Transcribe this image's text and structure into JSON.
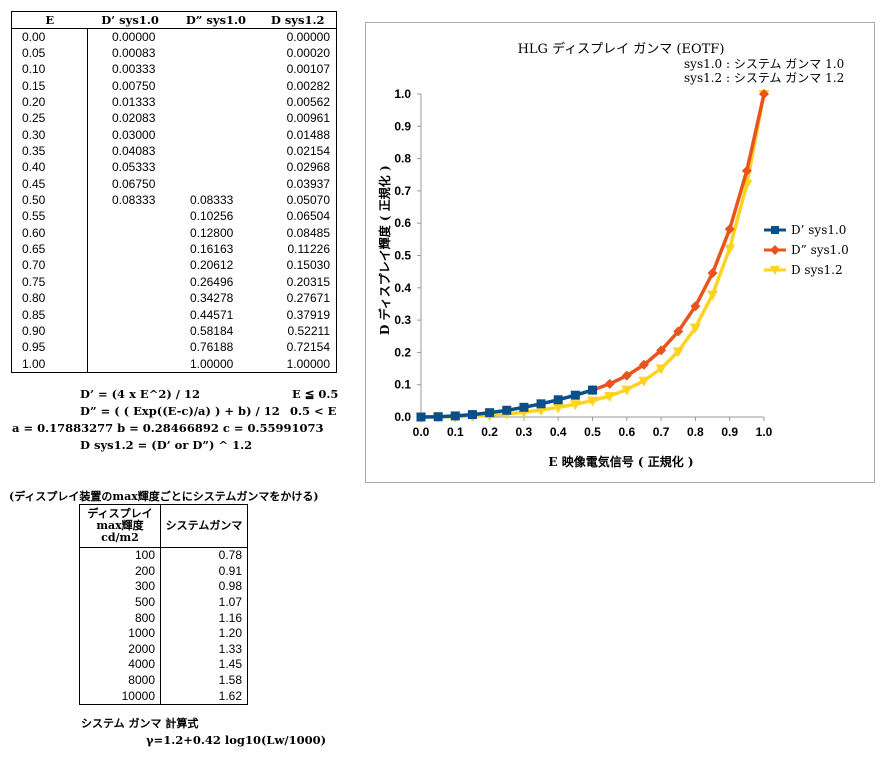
{
  "table1": {
    "headers": [
      "E",
      "D’ sys1.0",
      "D” sys1.0",
      "D sys1.2"
    ],
    "rows": [
      [
        "0.00",
        "0.00000",
        "",
        "0.00000"
      ],
      [
        "0.05",
        "0.00083",
        "",
        "0.00020"
      ],
      [
        "0.10",
        "0.00333",
        "",
        "0.00107"
      ],
      [
        "0.15",
        "0.00750",
        "",
        "0.00282"
      ],
      [
        "0.20",
        "0.01333",
        "",
        "0.00562"
      ],
      [
        "0.25",
        "0.02083",
        "",
        "0.00961"
      ],
      [
        "0.30",
        "0.03000",
        "",
        "0.01488"
      ],
      [
        "0.35",
        "0.04083",
        "",
        "0.02154"
      ],
      [
        "0.40",
        "0.05333",
        "",
        "0.02968"
      ],
      [
        "0.45",
        "0.06750",
        "",
        "0.03937"
      ],
      [
        "0.50",
        "0.08333",
        "0.08333",
        "0.05070"
      ],
      [
        "0.55",
        "",
        "0.10256",
        "0.06504"
      ],
      [
        "0.60",
        "",
        "0.12800",
        "0.08485"
      ],
      [
        "0.65",
        "",
        "0.16163",
        "0.11226"
      ],
      [
        "0.70",
        "",
        "0.20612",
        "0.15030"
      ],
      [
        "0.75",
        "",
        "0.26496",
        "0.20315"
      ],
      [
        "0.80",
        "",
        "0.34278",
        "0.27671"
      ],
      [
        "0.85",
        "",
        "0.44571",
        "0.37919"
      ],
      [
        "0.90",
        "",
        "0.58184",
        "0.52211"
      ],
      [
        "0.95",
        "",
        "0.76188",
        "0.72154"
      ],
      [
        "1.00",
        "",
        "1.00000",
        "1.00000"
      ]
    ]
  },
  "formulas": {
    "f1": "D’ = (4 x E^2) / 12",
    "f1_cond": "E ≦ 0.5",
    "f2": "D” = ( ( Exp((E-c)/a) ) + b) / 12",
    "f2_cond": "0.5 < E",
    "consts": "a = 0.17883277   b = 0.28466892   c = 0.55991073",
    "f3": "D sys1.2 = (D’ or D”) ^ 1.2"
  },
  "section2": {
    "title": "(ディスプレイ装置のmax輝度ごとにシステムガンマをかける)",
    "header_col1": [
      "ディスプレイ",
      "max輝度",
      "cd/m2"
    ],
    "header_col2": "システムガンマ",
    "rows": [
      [
        "100",
        "0.78"
      ],
      [
        "200",
        "0.91"
      ],
      [
        "300",
        "0.98"
      ],
      [
        "500",
        "1.07"
      ],
      [
        "800",
        "1.16"
      ],
      [
        "1000",
        "1.20"
      ],
      [
        "2000",
        "1.33"
      ],
      [
        "4000",
        "1.45"
      ],
      [
        "8000",
        "1.58"
      ],
      [
        "10000",
        "1.62"
      ]
    ],
    "footer_label": "システム ガンマ  計算式",
    "footer_formula": "γ=1.2+0.42 log10(Lw/1000)"
  },
  "chart": {
    "title": "HLG  ディスプレイ ガンマ  (EOTF)",
    "sub1": "sys1.0 : システム ガンマ  1.0",
    "sub2": "sys1.2 : システム ガンマ  1.2",
    "xlabel": "E  映像電気信号  ( 正規化 )",
    "ylabel": "D  ディスプレイ輝度  ( 正規化 )",
    "legend": [
      "D’ sys1.0",
      "D” sys1.0",
      "D sys1.2"
    ],
    "colors": [
      "#0b4f8a",
      "#e8531e",
      "#ffd320"
    ]
  },
  "chart_data": {
    "type": "line",
    "title": "HLG  ディスプレイ ガンマ  (EOTF)",
    "xlabel": "E  映像電気信号  ( 正規化 )",
    "ylabel": "D  ディスプレイ輝度  ( 正規化 )",
    "xlim": [
      0,
      1
    ],
    "ylim": [
      0,
      1
    ],
    "xticks": [
      "0.0",
      "0.1",
      "0.2",
      "0.3",
      "0.4",
      "0.5",
      "0.6",
      "0.7",
      "0.8",
      "0.9",
      "1.0"
    ],
    "yticks": [
      "0.0",
      "0.1",
      "0.2",
      "0.3",
      "0.4",
      "0.5",
      "0.6",
      "0.7",
      "0.8",
      "0.9",
      "1.0"
    ],
    "grid": false,
    "legend_position": "right",
    "series": [
      {
        "name": "D’ sys1.0",
        "marker": "square",
        "x": [
          0,
          0.05,
          0.1,
          0.15,
          0.2,
          0.25,
          0.3,
          0.35,
          0.4,
          0.45,
          0.5
        ],
        "y": [
          0,
          0.00083,
          0.00333,
          0.0075,
          0.01333,
          0.02083,
          0.03,
          0.04083,
          0.05333,
          0.0675,
          0.08333
        ]
      },
      {
        "name": "D” sys1.0",
        "marker": "diamond",
        "x": [
          0.5,
          0.55,
          0.6,
          0.65,
          0.7,
          0.75,
          0.8,
          0.85,
          0.9,
          0.95,
          1.0
        ],
        "y": [
          0.08333,
          0.10256,
          0.128,
          0.16163,
          0.20612,
          0.26496,
          0.34278,
          0.44571,
          0.58184,
          0.76188,
          1.0
        ]
      },
      {
        "name": "D sys1.2",
        "marker": "triangle-down",
        "x": [
          0,
          0.05,
          0.1,
          0.15,
          0.2,
          0.25,
          0.3,
          0.35,
          0.4,
          0.45,
          0.5,
          0.55,
          0.6,
          0.65,
          0.7,
          0.75,
          0.8,
          0.85,
          0.9,
          0.95,
          1.0
        ],
        "y": [
          0,
          0.0002,
          0.00107,
          0.00282,
          0.00562,
          0.00961,
          0.01488,
          0.02154,
          0.02968,
          0.03937,
          0.0507,
          0.06504,
          0.08485,
          0.11226,
          0.1503,
          0.20315,
          0.27671,
          0.37919,
          0.52211,
          0.72154,
          1.0
        ]
      }
    ]
  }
}
